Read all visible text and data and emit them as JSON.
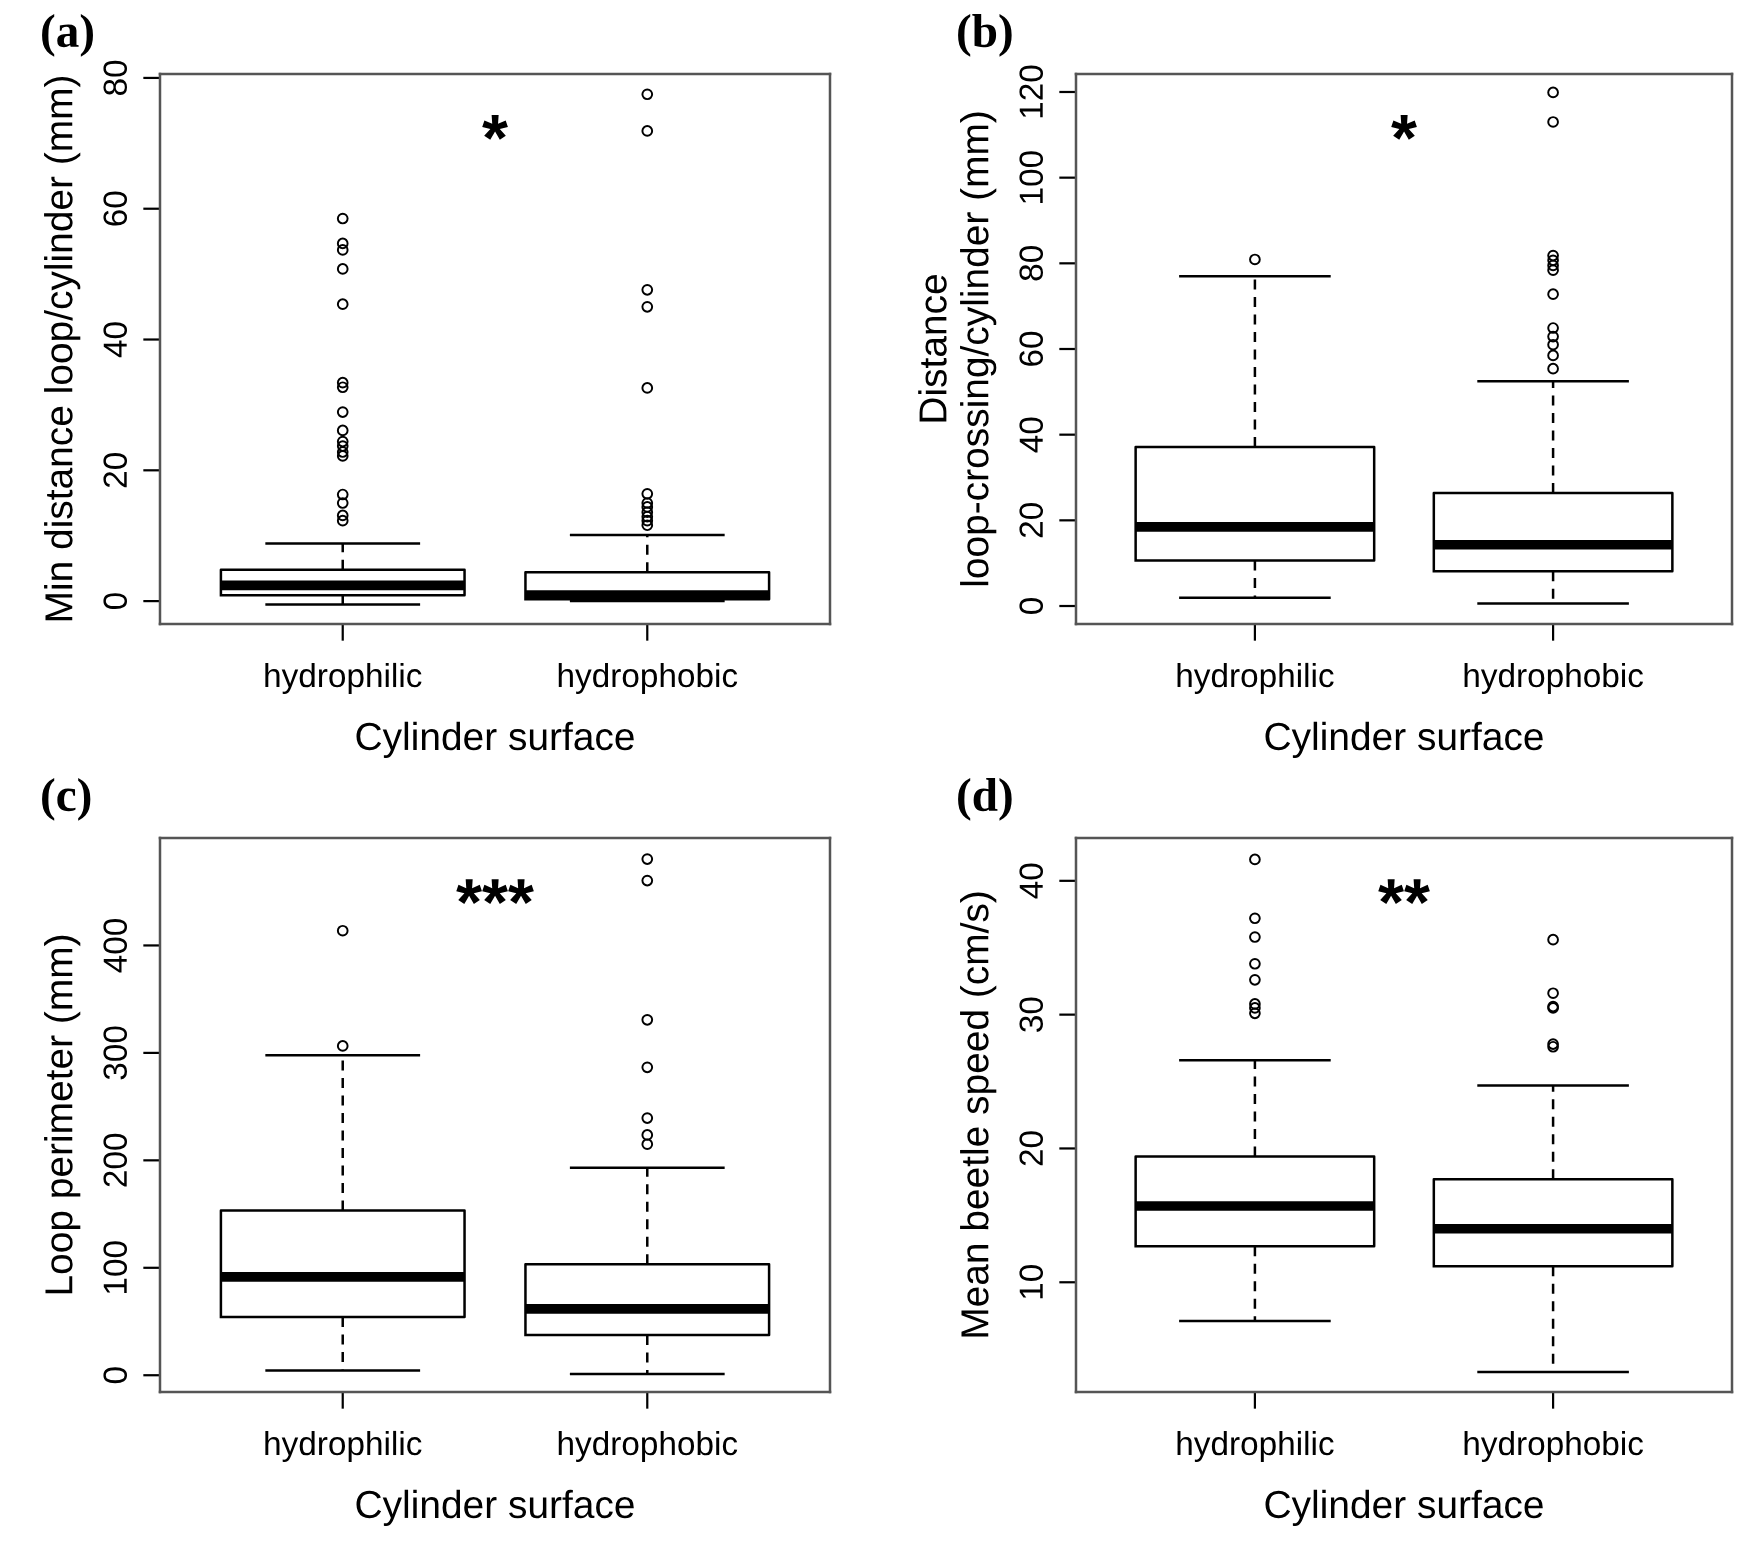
{
  "chart_data": [
    {
      "type": "box",
      "title": "(a)",
      "xlabel": "Cylinder surface",
      "ylabel": "Min distance loop/cylinder (mm)",
      "categories": [
        "hydrophilic",
        "hydrophobic"
      ],
      "boxes": [
        {
          "low": -0.5,
          "q1": 0.9,
          "median": 2.4,
          "q3": 4.8,
          "high": 8.8,
          "outliers": [
            12.3,
            13.1,
            15.0,
            16.3,
            22.2,
            22.8,
            23.7,
            24.4,
            26.1,
            28.9,
            32.7,
            33.4,
            45.4,
            50.8,
            53.7,
            54.7,
            58.5
          ]
        },
        {
          "low": 0,
          "q1": 0.3,
          "median": 0.9,
          "q3": 4.4,
          "high": 10.1,
          "outliers": [
            11.6,
            12.3,
            12.9,
            13.6,
            14.4,
            15.0,
            16.4,
            32.6,
            45.0,
            47.6,
            71.9,
            77.5
          ]
        }
      ],
      "ylim": [
        -3.5,
        80.6
      ],
      "yticks": [
        0,
        20,
        40,
        60,
        80
      ],
      "annotations": [
        "*"
      ]
    },
    {
      "type": "box",
      "title": "(b)",
      "xlabel": "Cylinder surface",
      "ylabel": "Distance\nloop-crossing/cylinder (mm)",
      "categories": [
        "hydrophilic",
        "hydrophobic"
      ],
      "boxes": [
        {
          "low": 1.9,
          "q1": 10.6,
          "median": 18.5,
          "q3": 37.1,
          "high": 77.0,
          "outliers": [
            80.9
          ]
        },
        {
          "low": 0.6,
          "q1": 8.1,
          "median": 14.3,
          "q3": 26.4,
          "high": 52.5,
          "outliers": [
            55.4,
            58.5,
            61.0,
            62.9,
            64.9,
            72.8,
            78.4,
            79.5,
            80.7,
            81.8,
            113.0,
            119.9
          ]
        }
      ],
      "ylim": [
        -4.2,
        124.2
      ],
      "yticks": [
        0,
        20,
        40,
        60,
        80,
        100,
        120
      ],
      "annotations": [
        "*"
      ]
    },
    {
      "type": "box",
      "title": "(c)",
      "xlabel": "Cylinder surface",
      "ylabel": "Loop perimeter (mm)",
      "categories": [
        "hydrophilic",
        "hydrophobic"
      ],
      "boxes": [
        {
          "low": 4.4,
          "q1": 54.2,
          "median": 91.6,
          "q3": 153.3,
          "high": 297.8,
          "outliers": [
            306.5,
            413.7
          ]
        },
        {
          "low": 1.2,
          "q1": 37.4,
          "median": 61.7,
          "q3": 103.4,
          "high": 193.1,
          "outliers": [
            215,
            223.7,
            239.3,
            286.6,
            330.8,
            460.4,
            480.4
          ]
        }
      ],
      "ylim": [
        -15.6,
        500
      ],
      "yticks": [
        0,
        100,
        200,
        300,
        400
      ],
      "annotations": [
        "***"
      ]
    },
    {
      "type": "box",
      "title": "(d)",
      "xlabel": "Cylinder surface",
      "ylabel": "Mean beetle speed (cm/s)",
      "categories": [
        "hydrophilic",
        "hydrophobic"
      ],
      "boxes": [
        {
          "low": 7.1,
          "q1": 12.7,
          "median": 15.7,
          "q3": 19.4,
          "high": 26.6,
          "outliers": [
            30.1,
            30.5,
            30.8,
            32.6,
            33.8,
            35.8,
            37.2,
            41.6
          ]
        },
        {
          "low": 3.3,
          "q1": 11.2,
          "median": 14.0,
          "q3": 17.7,
          "high": 24.7,
          "outliers": [
            27.6,
            27.8,
            30.5,
            30.6,
            31.6,
            35.6
          ]
        }
      ],
      "ylim": [
        1.8,
        43.2
      ],
      "yticks": [
        10,
        20,
        30,
        40
      ],
      "annotations": [
        "**"
      ]
    }
  ]
}
